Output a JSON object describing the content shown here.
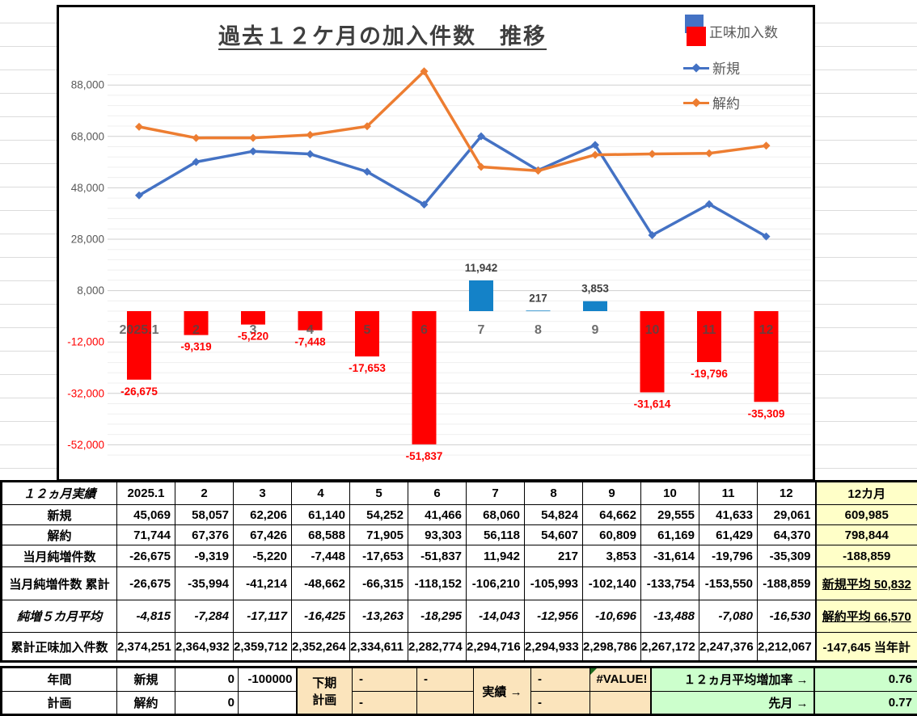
{
  "chart": {
    "title": "過去１２ケ月の加入件数　推移",
    "legend": {
      "net": "正味加入数",
      "new": "新規",
      "cancel": "解約"
    }
  },
  "chart_data": {
    "type": "bar",
    "subtype": "combo bar + 2 lines",
    "title": "過去１２ケ月の加入件数　推移",
    "categories": [
      "2025.1",
      "2",
      "3",
      "4",
      "5",
      "6",
      "7",
      "8",
      "9",
      "10",
      "11",
      "12"
    ],
    "series": [
      {
        "name": "正味加入数",
        "type": "bar",
        "values": [
          -26675,
          -9319,
          -5220,
          -7448,
          -17653,
          -51837,
          11942,
          217,
          3853,
          -31614,
          -19796,
          -35309
        ],
        "positive_color": "#1482C8",
        "negative_color": "#FF0000"
      },
      {
        "name": "新規",
        "type": "line",
        "color": "#4472C4",
        "values": [
          45069,
          58057,
          62206,
          61140,
          54252,
          41466,
          68060,
          54824,
          64662,
          29555,
          41633,
          29061
        ]
      },
      {
        "name": "解約",
        "type": "line",
        "color": "#ED7D31",
        "values": [
          71744,
          67376,
          67426,
          68588,
          71905,
          93303,
          56118,
          54607,
          60809,
          61169,
          61429,
          64370
        ]
      }
    ],
    "y_ticks": [
      88000,
      68000,
      48000,
      28000,
      8000,
      -12000,
      -32000,
      -52000
    ],
    "ylim": [
      -56000,
      92000
    ],
    "grid": "major light gray every 20000, minor every 4000",
    "legend_position": "top-right",
    "xlabel": "",
    "ylabel": ""
  },
  "table": {
    "header": {
      "label": "１２ヵ月実績",
      "months": [
        "2025.1",
        "2",
        "3",
        "4",
        "5",
        "6",
        "7",
        "8",
        "9",
        "10",
        "11",
        "12"
      ],
      "summary": "12カ月"
    },
    "rows": [
      {
        "label": "新規",
        "values": [
          "45,069",
          "58,057",
          "62,206",
          "61,140",
          "54,252",
          "41,466",
          "68,060",
          "54,824",
          "64,662",
          "29,555",
          "41,633",
          "29,061"
        ],
        "summary": "609,985"
      },
      {
        "label": "解約",
        "values": [
          "71,744",
          "67,376",
          "67,426",
          "68,588",
          "71,905",
          "93,303",
          "56,118",
          "54,607",
          "60,809",
          "61,169",
          "61,429",
          "64,370"
        ],
        "summary": "798,844"
      },
      {
        "label": "当月純増件数",
        "values": [
          "-26,675",
          "-9,319",
          "-5,220",
          "-7,448",
          "-17,653",
          "-51,837",
          "11,942",
          "217",
          "3,853",
          "-31,614",
          "-19,796",
          "-35,309"
        ],
        "summary": "-188,859"
      },
      {
        "label": "当月純増件数 累計",
        "values": [
          "-26,675",
          "-35,994",
          "-41,214",
          "-48,662",
          "-66,315",
          "-118,152",
          "-106,210",
          "-105,993",
          "-102,140",
          "-133,754",
          "-153,550",
          "-188,859"
        ],
        "summary": "新規平均 50,832"
      },
      {
        "label": "純増５カ月平均",
        "values": [
          "-4,815",
          "-7,284",
          "-17,117",
          "-16,425",
          "-13,263",
          "-18,295",
          "-14,043",
          "-12,956",
          "-10,696",
          "-13,488",
          "-7,080",
          "-16,530"
        ],
        "summary": "解約平均 66,570"
      },
      {
        "label": "累計正味加入件数",
        "values": [
          "2,374,251",
          "2,364,932",
          "2,359,712",
          "2,352,264",
          "2,334,611",
          "2,282,774",
          "2,294,716",
          "2,294,933",
          "2,298,786",
          "2,267,172",
          "2,247,376",
          "2,212,067"
        ],
        "summary": "-147,645 当年計"
      }
    ]
  },
  "bottom": {
    "annual": "年間",
    "plan": "計画",
    "shinki": "新規",
    "kaiyaku": "解約",
    "v_new": "0",
    "v_cancel": "0",
    "v_new2": "-100000",
    "kaki": "下期",
    "kaki2": "計画",
    "d1": "-",
    "d2": "-",
    "d3": "-",
    "d4": "-",
    "d5": "-",
    "jisseki": "実績 →",
    "err": "#VALUE!",
    "rate_label": "１２ヵ月平均増加率 →",
    "rate": "0.76",
    "prev_label": "先月 →",
    "prev": "0.77"
  },
  "colors": {
    "bar_positive": "#1482C8",
    "bar_negative": "#FF0000",
    "line_new": "#4472C4",
    "line_cancel": "#ED7D31",
    "pink_row": "#FFC7EC",
    "lavender_row": "#D9DCE9",
    "summary_col": "#FFFFC8",
    "tan_cells": "#FBE4BC",
    "green_cells": "#CCFFCC"
  }
}
